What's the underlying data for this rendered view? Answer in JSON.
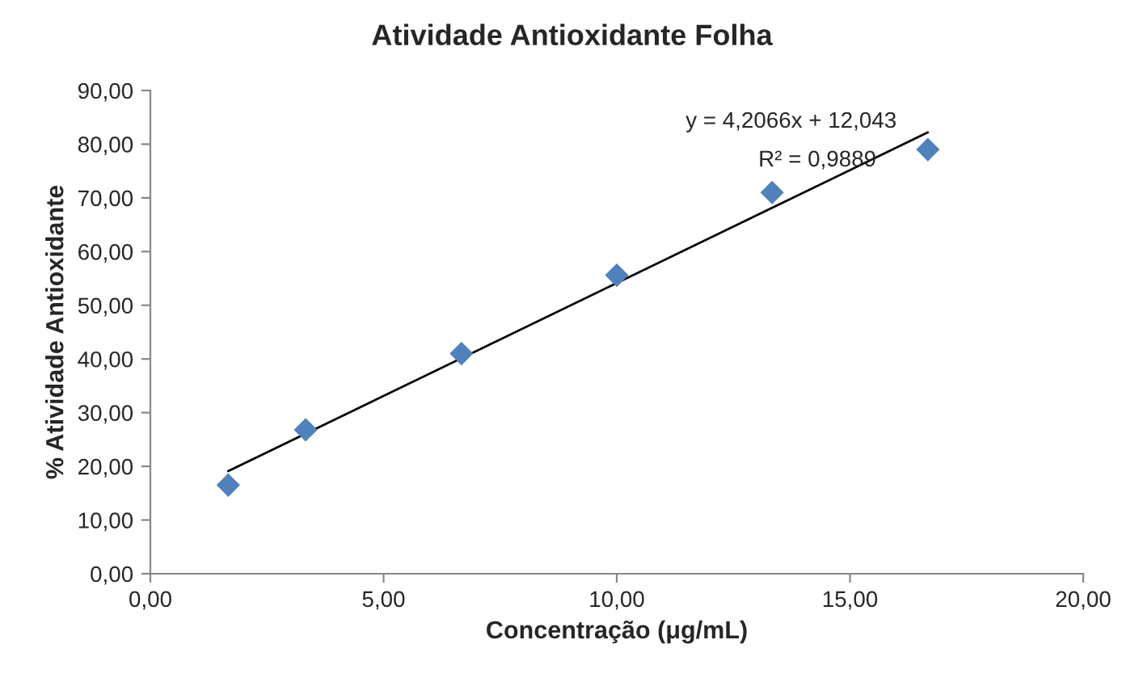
{
  "chart_data": {
    "type": "scatter",
    "title": "Atividade Antioxidante Folha",
    "xlabel": "Concentração (μg/mL)",
    "ylabel": "% Atividade Antioxidante",
    "series": [
      {
        "color": "#4f81bd",
        "marker": "diamond",
        "x": [
          1.67,
          3.33,
          6.67,
          10.0,
          13.33,
          16.67
        ],
        "values": [
          16.5,
          26.8,
          41.0,
          55.6,
          71.0,
          79.0
        ]
      },
      {
        "type": "line",
        "color": "#000000",
        "marker": "none",
        "line_style": "solid",
        "x": [
          1.67,
          16.67
        ],
        "values": [
          19.1,
          82.2
        ]
      }
    ],
    "annotations": [
      "y = 4,2066x + 12,043",
      "R² = 0,9889"
    ],
    "xlim": [
      0,
      20
    ],
    "xticks": [
      {
        "value": 0,
        "label": "0,00"
      },
      {
        "value": 5,
        "label": "5,00"
      },
      {
        "value": 10,
        "label": "10,00"
      },
      {
        "value": 15,
        "label": "15,00"
      },
      {
        "value": 20,
        "label": "20,00"
      }
    ],
    "ylim": [
      0,
      90
    ],
    "yticks": [
      {
        "value": 0,
        "label": "0,00"
      },
      {
        "value": 10,
        "label": "10,00"
      },
      {
        "value": 20,
        "label": "20,00"
      },
      {
        "value": 30,
        "label": "30,00"
      },
      {
        "value": 40,
        "label": "40,00"
      },
      {
        "value": 50,
        "label": "50,00"
      },
      {
        "value": 60,
        "label": "60,00"
      },
      {
        "value": 70,
        "label": "70,00"
      },
      {
        "value": 80,
        "label": "80,00"
      },
      {
        "value": 90,
        "label": "90,00"
      }
    ],
    "grid": false,
    "legend": false
  }
}
